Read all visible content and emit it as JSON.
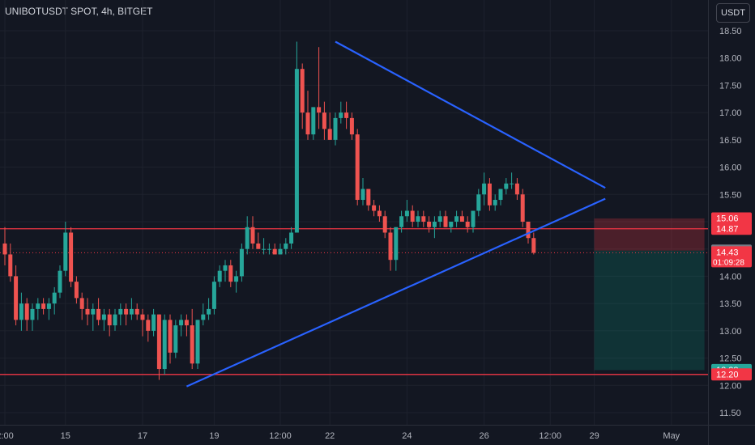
{
  "header": {
    "symbol_line": "UNIBOTUSDT SPOT, 4h, BITGET",
    "currency_button": "USDT"
  },
  "colors": {
    "background": "#131722",
    "up": "#26a69a",
    "down": "#ef5350",
    "trendline": "#2962ff",
    "level": "#f23645",
    "grid": "#1e222d",
    "text": "#b2b5be"
  },
  "chart_data": {
    "type": "candlestick",
    "y_ticks": [
      "18.50",
      "18.00",
      "17.50",
      "17.00",
      "16.50",
      "16.00",
      "15.50",
      "15.00",
      "14.50",
      "14.00",
      "13.50",
      "13.00",
      "12.50",
      "12.00",
      "11.50"
    ],
    "ylim": [
      11.5,
      18.5
    ],
    "x_ticks": [
      {
        "label": "2:00",
        "bar": 0
      },
      {
        "label": "15",
        "bar": 11
      },
      {
        "label": "17",
        "bar": 25
      },
      {
        "label": "19",
        "bar": 38
      },
      {
        "label": "12:00",
        "bar": 50
      },
      {
        "label": "22",
        "bar": 59
      },
      {
        "label": "24",
        "bar": 73
      },
      {
        "label": "26",
        "bar": 87
      },
      {
        "label": "12:00",
        "bar": 99
      },
      {
        "label": "29",
        "bar": 107
      },
      {
        "label": "May",
        "bar": 121
      }
    ],
    "candles": [
      [
        14.6,
        14.9,
        14.2,
        14.4
      ],
      [
        14.4,
        14.6,
        13.9,
        14.0
      ],
      [
        14.0,
        14.2,
        13.1,
        13.2
      ],
      [
        13.2,
        13.7,
        13.0,
        13.5
      ],
      [
        13.5,
        13.6,
        13.0,
        13.2
      ],
      [
        13.2,
        13.5,
        13.0,
        13.4
      ],
      [
        13.4,
        13.6,
        13.2,
        13.5
      ],
      [
        13.5,
        13.6,
        13.3,
        13.4
      ],
      [
        13.4,
        13.6,
        13.2,
        13.5
      ],
      [
        13.5,
        13.8,
        13.3,
        13.7
      ],
      [
        13.7,
        14.2,
        13.6,
        14.1
      ],
      [
        14.1,
        15.0,
        14.0,
        14.8
      ],
      [
        14.8,
        14.9,
        13.8,
        13.9
      ],
      [
        13.9,
        14.0,
        13.5,
        13.6
      ],
      [
        13.6,
        13.7,
        13.2,
        13.4
      ],
      [
        13.4,
        13.6,
        13.1,
        13.3
      ],
      [
        13.3,
        13.5,
        13.0,
        13.4
      ],
      [
        13.4,
        13.6,
        13.1,
        13.2
      ],
      [
        13.2,
        13.4,
        13.0,
        13.3
      ],
      [
        13.3,
        13.4,
        12.9,
        13.1
      ],
      [
        13.1,
        13.4,
        13.0,
        13.3
      ],
      [
        13.3,
        13.5,
        13.1,
        13.4
      ],
      [
        13.4,
        13.5,
        13.1,
        13.3
      ],
      [
        13.3,
        13.6,
        13.2,
        13.4
      ],
      [
        13.4,
        13.5,
        13.2,
        13.3
      ],
      [
        13.3,
        13.4,
        12.9,
        13.2
      ],
      [
        13.2,
        13.3,
        12.8,
        13.0
      ],
      [
        13.0,
        13.4,
        12.9,
        13.3
      ],
      [
        13.3,
        13.3,
        12.1,
        12.3
      ],
      [
        12.3,
        13.3,
        12.2,
        13.2
      ],
      [
        13.2,
        13.3,
        12.4,
        12.6
      ],
      [
        12.6,
        13.2,
        12.5,
        13.1
      ],
      [
        13.1,
        13.3,
        12.9,
        13.2
      ],
      [
        13.2,
        13.3,
        12.9,
        13.1
      ],
      [
        13.1,
        13.4,
        12.3,
        12.4
      ],
      [
        12.4,
        13.2,
        12.3,
        13.2
      ],
      [
        13.2,
        13.5,
        13.1,
        13.3
      ],
      [
        13.3,
        13.6,
        13.2,
        13.4
      ],
      [
        13.4,
        14.0,
        13.3,
        13.9
      ],
      [
        13.9,
        14.2,
        13.8,
        14.1
      ],
      [
        14.1,
        14.3,
        13.9,
        14.2
      ],
      [
        14.2,
        14.3,
        13.8,
        13.9
      ],
      [
        13.9,
        14.1,
        13.7,
        14.0
      ],
      [
        14.0,
        14.6,
        13.9,
        14.5
      ],
      [
        14.5,
        15.1,
        14.4,
        14.9
      ],
      [
        14.9,
        15.1,
        14.5,
        14.6
      ],
      [
        14.6,
        14.8,
        14.5,
        14.5
      ],
      [
        14.5,
        14.7,
        14.4,
        14.5
      ],
      [
        14.5,
        14.6,
        14.4,
        14.5
      ],
      [
        14.5,
        14.6,
        14.4,
        14.4
      ],
      [
        14.4,
        14.6,
        14.4,
        14.5
      ],
      [
        14.5,
        14.7,
        14.4,
        14.6
      ],
      [
        14.6,
        14.9,
        14.5,
        14.8
      ],
      [
        14.8,
        18.3,
        14.8,
        17.8
      ],
      [
        17.8,
        17.9,
        16.7,
        17.0
      ],
      [
        17.0,
        17.4,
        16.5,
        16.6
      ],
      [
        16.6,
        17.1,
        16.5,
        17.1
      ],
      [
        17.1,
        18.2,
        16.7,
        17.0
      ],
      [
        17.0,
        17.2,
        16.5,
        16.7
      ],
      [
        16.7,
        17.0,
        16.5,
        16.5
      ],
      [
        16.5,
        17.0,
        16.4,
        16.9
      ],
      [
        16.9,
        17.2,
        16.8,
        17.0
      ],
      [
        17.0,
        17.2,
        16.7,
        16.9
      ],
      [
        16.9,
        17.0,
        16.5,
        16.6
      ],
      [
        16.6,
        16.7,
        15.3,
        15.4
      ],
      [
        15.4,
        15.8,
        15.3,
        15.6
      ],
      [
        15.6,
        15.6,
        15.2,
        15.3
      ],
      [
        15.3,
        15.4,
        15.1,
        15.2
      ],
      [
        15.2,
        15.3,
        15.0,
        15.1
      ],
      [
        15.1,
        15.2,
        14.7,
        14.8
      ],
      [
        14.8,
        14.9,
        14.1,
        14.3
      ],
      [
        14.3,
        14.9,
        14.1,
        14.9
      ],
      [
        14.9,
        15.2,
        14.8,
        15.1
      ],
      [
        15.1,
        15.4,
        15.0,
        15.2
      ],
      [
        15.2,
        15.3,
        14.9,
        15.0
      ],
      [
        15.0,
        15.2,
        14.9,
        15.1
      ],
      [
        15.1,
        15.2,
        14.9,
        15.0
      ],
      [
        15.0,
        15.1,
        14.8,
        14.9
      ],
      [
        14.9,
        15.1,
        14.7,
        15.0
      ],
      [
        15.0,
        15.2,
        14.9,
        15.1
      ],
      [
        15.1,
        15.2,
        14.9,
        14.9
      ],
      [
        14.9,
        15.0,
        14.8,
        15.0
      ],
      [
        15.0,
        15.2,
        14.9,
        15.1
      ],
      [
        15.1,
        15.2,
        15.0,
        15.0
      ],
      [
        15.0,
        15.1,
        14.8,
        14.9
      ],
      [
        14.9,
        15.2,
        14.8,
        15.2
      ],
      [
        15.2,
        15.6,
        15.1,
        15.5
      ],
      [
        15.5,
        15.9,
        15.3,
        15.7
      ],
      [
        15.7,
        15.8,
        15.2,
        15.3
      ],
      [
        15.3,
        15.5,
        15.2,
        15.4
      ],
      [
        15.4,
        15.6,
        15.3,
        15.6
      ],
      [
        15.6,
        15.8,
        15.5,
        15.7
      ],
      [
        15.7,
        15.9,
        15.6,
        15.7
      ],
      [
        15.7,
        15.8,
        15.4,
        15.5
      ],
      [
        15.5,
        15.6,
        14.9,
        15.0
      ],
      [
        15.0,
        15.0,
        14.6,
        14.7
      ],
      [
        14.7,
        14.8,
        14.4,
        14.43
      ]
    ],
    "trendlines": [
      {
        "from": {
          "bar": 60,
          "price": 18.3
        },
        "to": {
          "bar": 109,
          "price": 15.62
        }
      },
      {
        "from": {
          "bar": 33,
          "price": 11.98
        },
        "to": {
          "bar": 109,
          "price": 15.42
        }
      }
    ],
    "horizontal_levels": [
      14.87,
      12.2
    ],
    "position_box": {
      "entry": 14.47,
      "stop": 15.06,
      "target": 12.28,
      "start_bar": 107,
      "end_bar": 127
    },
    "price_labels": [
      {
        "text": "15.06",
        "price": 15.06,
        "color": "#f23645"
      },
      {
        "text": "14.87",
        "price": 14.87,
        "color": "#f23645"
      },
      {
        "text": "14.47",
        "price": 14.47,
        "color": "#787b86"
      },
      {
        "text": "14.43",
        "sub": "01:09:28",
        "price": 14.43,
        "color": "#f23645"
      },
      {
        "text": "12.28",
        "price": 12.28,
        "color": "#26a69a"
      },
      {
        "text": "12.20",
        "price": 12.2,
        "color": "#f23645"
      }
    ]
  }
}
